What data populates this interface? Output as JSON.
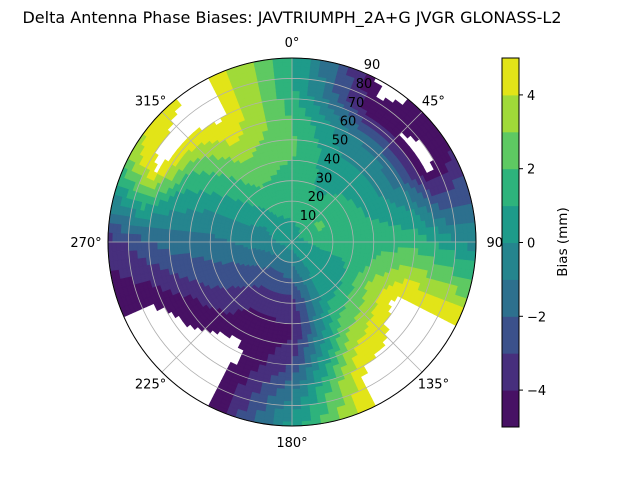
{
  "chart_data": {
    "type": "heatmap",
    "subtype": "polar-filled-contour",
    "title": "Delta Antenna Phase Biases: JAVTRIUMPH_2A+G JVGR GLONASS-L2",
    "angular_ticks": [
      "0°",
      "45°",
      "90°",
      "135°",
      "180°",
      "225°",
      "270°",
      "315°"
    ],
    "radial_ticks": [
      "10",
      "20",
      "30",
      "40",
      "50",
      "60",
      "70",
      "80",
      "90"
    ],
    "radial_range": [
      0,
      90
    ],
    "angle_direction": "clockwise",
    "angle_zero": "top",
    "grid": true,
    "colorbar": {
      "label": "Bias (mm)",
      "ticks": [
        "4",
        "2",
        "0",
        "−2",
        "−4"
      ],
      "range": [
        -5,
        5
      ],
      "levels": [
        -5,
        -4,
        -3,
        -2,
        -1,
        0,
        1,
        2,
        3,
        4,
        5
      ],
      "colors": [
        "#471164",
        "#472f7d",
        "#3b518b",
        "#2d708e",
        "#25858e",
        "#1e9b8a",
        "#2eb37c",
        "#5ec962",
        "#a0da39",
        "#e2e418"
      ],
      "placement": "right"
    },
    "azimuth_deg": [
      0,
      30,
      60,
      90,
      120,
      150,
      180,
      210,
      240,
      270,
      300,
      330
    ],
    "zenith_deg": [
      0,
      15,
      30,
      45,
      60,
      75,
      90
    ],
    "values_mm": [
      [
        0.5,
        1.2,
        1.5,
        2.2,
        2.0,
        1.2,
        1.0
      ],
      [
        0.5,
        1.5,
        0.8,
        0.3,
        -1.0,
        -4.5,
        -5.5
      ],
      [
        0.5,
        2.2,
        1.5,
        0.3,
        -1.5,
        -5.5,
        -4.0
      ],
      [
        0.5,
        1.5,
        1.2,
        1.5,
        1.6,
        0.5,
        -0.5
      ],
      [
        0.5,
        0.5,
        1.0,
        3.5,
        5.5,
        5.5,
        5.5
      ],
      [
        0.5,
        0.0,
        0.5,
        2.0,
        4.0,
        5.5,
        5.5
      ],
      [
        0.5,
        -1.5,
        -3.5,
        -4.2,
        -3.0,
        -1.0,
        0.5
      ],
      [
        0.5,
        -2.0,
        -3.5,
        -4.5,
        -5.5,
        -5.5,
        -5.5
      ],
      [
        0.5,
        -1.5,
        -2.5,
        -3.0,
        -4.5,
        -5.5,
        -5.5
      ],
      [
        0.5,
        -0.5,
        -1.0,
        -1.5,
        -1.5,
        -2.5,
        -3.5
      ],
      [
        0.5,
        0.0,
        0.5,
        0.8,
        1.5,
        5.5,
        3.5
      ],
      [
        0.5,
        1.0,
        2.0,
        3.0,
        4.5,
        5.5,
        5.5
      ]
    ]
  }
}
